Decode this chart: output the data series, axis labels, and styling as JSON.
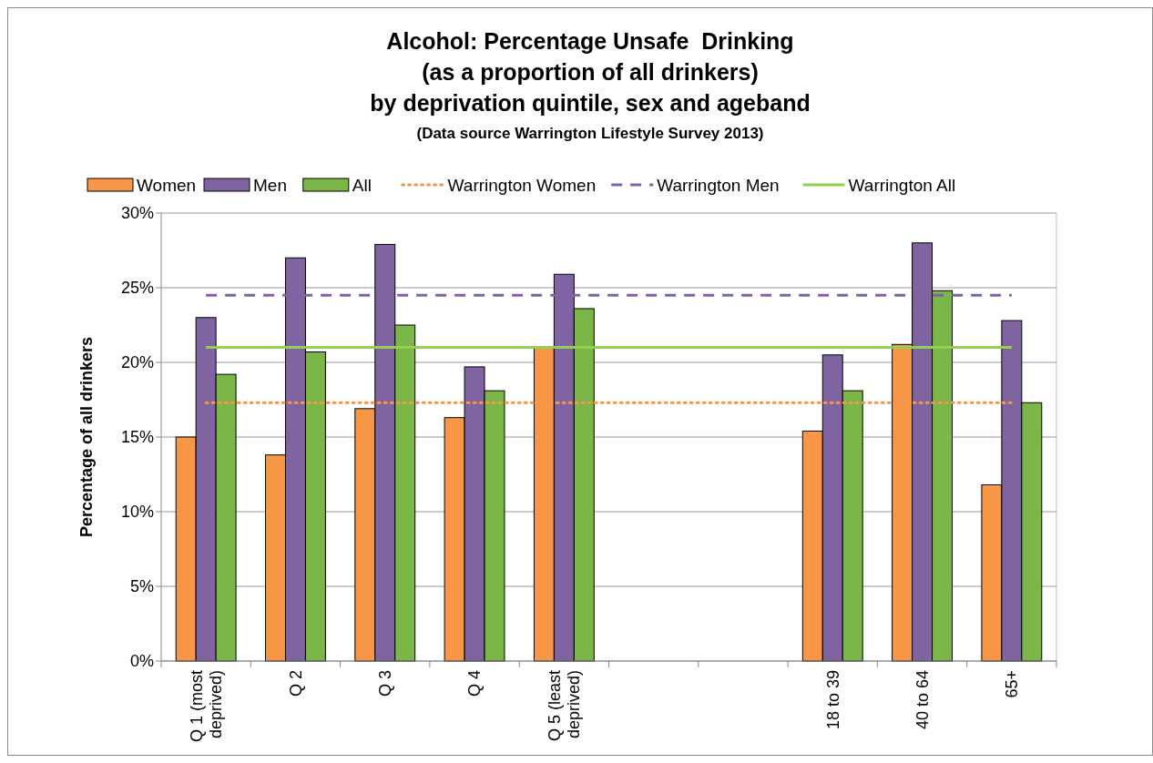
{
  "chart_data": {
    "type": "bar",
    "title": "Alcohol: Percentage Unsafe  Drinking\n(as a proportion of all drinkers)\nby deprivation quintile, sex and ageband",
    "subtitle": "(Data source Warrington Lifestyle Survey 2013)",
    "ylabel": "Percentage of all drinkers",
    "categories": [
      "Q 1 (most deprived)",
      "Q 2",
      "Q 3",
      "Q 4",
      "Q 5 (least deprived)",
      null,
      null,
      "18 to 39",
      "40 to 64",
      "65+"
    ],
    "series": [
      {
        "name": "Women",
        "color": "#f79646",
        "values": [
          15.0,
          13.8,
          16.9,
          16.3,
          21.0,
          null,
          null,
          15.4,
          21.2,
          11.8
        ]
      },
      {
        "name": "Men",
        "color": "#8064a2",
        "values": [
          23.0,
          27.0,
          27.9,
          19.7,
          25.9,
          null,
          null,
          20.5,
          28.0,
          22.8
        ]
      },
      {
        "name": "All",
        "color": "#7ab648",
        "values": [
          19.2,
          20.7,
          22.5,
          18.1,
          23.6,
          null,
          null,
          18.1,
          24.8,
          17.3
        ]
      },
      {
        "name": "Warrington Women",
        "type": "line",
        "color": "#f79646",
        "line_style": "dotted",
        "values": [
          17.3,
          17.3,
          17.3,
          17.3,
          17.3,
          17.3,
          17.3,
          17.3,
          17.3,
          17.3
        ]
      },
      {
        "name": "Warrington Men",
        "type": "line",
        "color": "#8064a2",
        "line_style": "dashed",
        "values": [
          24.5,
          24.5,
          24.5,
          24.5,
          24.5,
          24.5,
          24.5,
          24.5,
          24.5,
          24.5
        ]
      },
      {
        "name": "Warrington All",
        "type": "line",
        "color": "#92d050",
        "line_style": "solid",
        "values": [
          21.0,
          21.0,
          21.0,
          21.0,
          21.0,
          21.0,
          21.0,
          21.0,
          21.0,
          21.0
        ]
      }
    ],
    "ylim": [
      0,
      30
    ],
    "yticks": [
      {
        "value": 0,
        "label": "0%"
      },
      {
        "value": 5,
        "label": "5%"
      },
      {
        "value": 10,
        "label": "10%"
      },
      {
        "value": 15,
        "label": "15%"
      },
      {
        "value": 20,
        "label": "20%"
      },
      {
        "value": 25,
        "label": "25%"
      },
      {
        "value": 30,
        "label": "30%"
      }
    ],
    "grid": "y",
    "legend": "top"
  }
}
